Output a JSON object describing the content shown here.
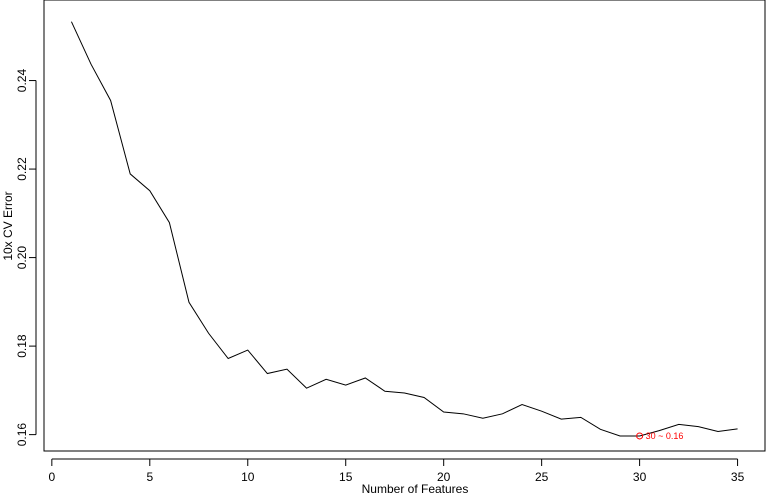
{
  "chart_data": {
    "type": "line",
    "title": "",
    "xlabel": "Number of Features",
    "ylabel": "10x CV Error",
    "xlim": [
      -0.4,
      36.4
    ],
    "ylim": [
      0.1563,
      0.2582
    ],
    "x_ticks": [
      0,
      5,
      10,
      15,
      20,
      25,
      30,
      35
    ],
    "y_ticks": [
      0.16,
      0.18,
      0.2,
      0.22,
      0.24
    ],
    "y_tick_labels": [
      "0.16",
      "0.18",
      "0.20",
      "0.22",
      "0.24"
    ],
    "grid": false,
    "legend": "none",
    "line_color": "#000000",
    "x": [
      1,
      2,
      3,
      4,
      5,
      6,
      7,
      8,
      9,
      10,
      11,
      12,
      13,
      14,
      15,
      16,
      17,
      18,
      19,
      20,
      21,
      22,
      23,
      24,
      25,
      26,
      27,
      28,
      29,
      30,
      31,
      32,
      33,
      34,
      35
    ],
    "series": [
      {
        "values": [
          0.2533,
          0.2437,
          0.2355,
          0.2189,
          0.2151,
          0.2079,
          0.1899,
          0.1829,
          0.1772,
          0.1791,
          0.1738,
          0.1748,
          0.1705,
          0.1725,
          0.1712,
          0.1728,
          0.1698,
          0.1694,
          0.1684,
          0.1651,
          0.1647,
          0.1637,
          0.1647,
          0.1668,
          0.1653,
          0.1635,
          0.1639,
          0.1612,
          0.1597,
          0.1597,
          0.1609,
          0.1623,
          0.1618,
          0.1607,
          0.1613
        ]
      }
    ],
    "annotation": {
      "x": 30,
      "y": 0.1597,
      "text": "30 ~ 0.16",
      "color": "#ff0000"
    }
  }
}
